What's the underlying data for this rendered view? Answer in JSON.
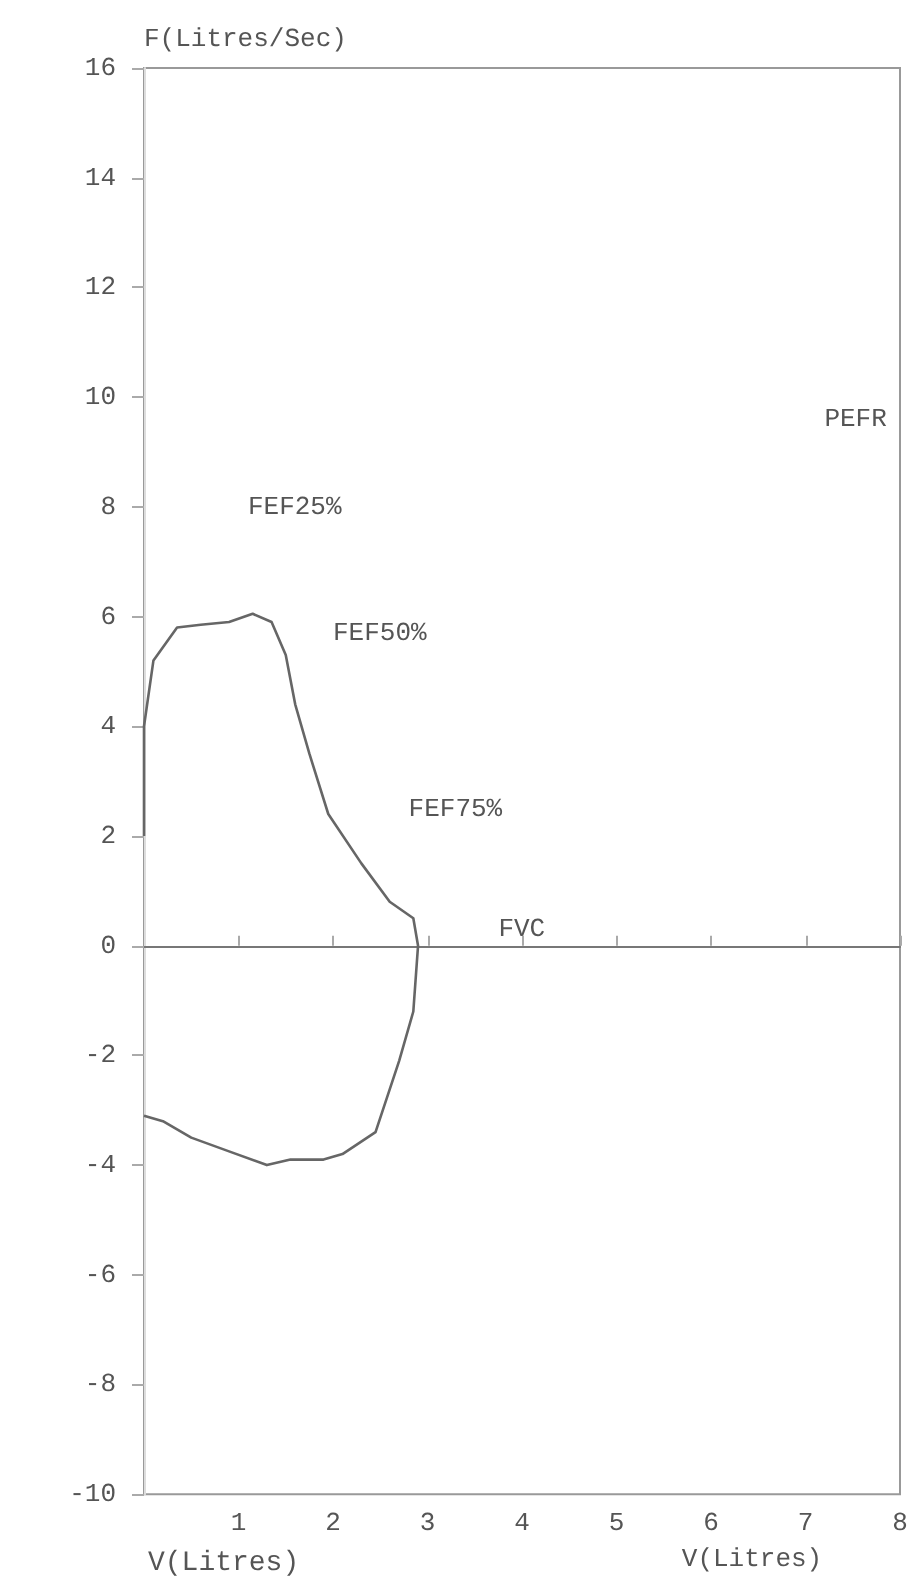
{
  "chart_data": {
    "type": "line",
    "ylabel": "F(Litres/Sec)",
    "xlabel": "V(Litres)",
    "x": [
      0,
      0,
      0.1,
      0.35,
      0.6,
      0.9,
      1.15,
      1.35,
      1.5,
      1.6,
      1.75,
      1.95,
      2.3,
      2.6,
      2.85,
      2.9,
      2.85,
      2.7,
      2.45,
      2.1,
      1.9,
      1.55,
      1.3,
      0.9,
      0.5,
      0.2,
      0
    ],
    "values": [
      2,
      4,
      5.2,
      5.8,
      5.85,
      5.9,
      6.05,
      5.9,
      5.3,
      4.4,
      3.5,
      2.4,
      1.5,
      0.8,
      0.5,
      0,
      -1.2,
      -2.1,
      -3.4,
      -3.8,
      -3.9,
      -3.9,
      -4,
      -3.75,
      -3.5,
      -3.2,
      -3.1
    ],
    "color": "#666666",
    "xlim": [
      0,
      8
    ],
    "xticks": [
      1,
      2,
      3,
      4,
      5,
      6,
      7,
      8
    ],
    "ylim": [
      -10,
      16
    ],
    "yticks": [
      -10,
      -8,
      -6,
      -4,
      -2,
      0,
      2,
      4,
      6,
      8,
      10,
      12,
      14,
      16
    ],
    "marker": "none",
    "annotations": [
      "PEFR",
      "FEF25%",
      "FEF50%",
      "FEF75%",
      "FVC",
      "V(Litres)"
    ]
  }
}
